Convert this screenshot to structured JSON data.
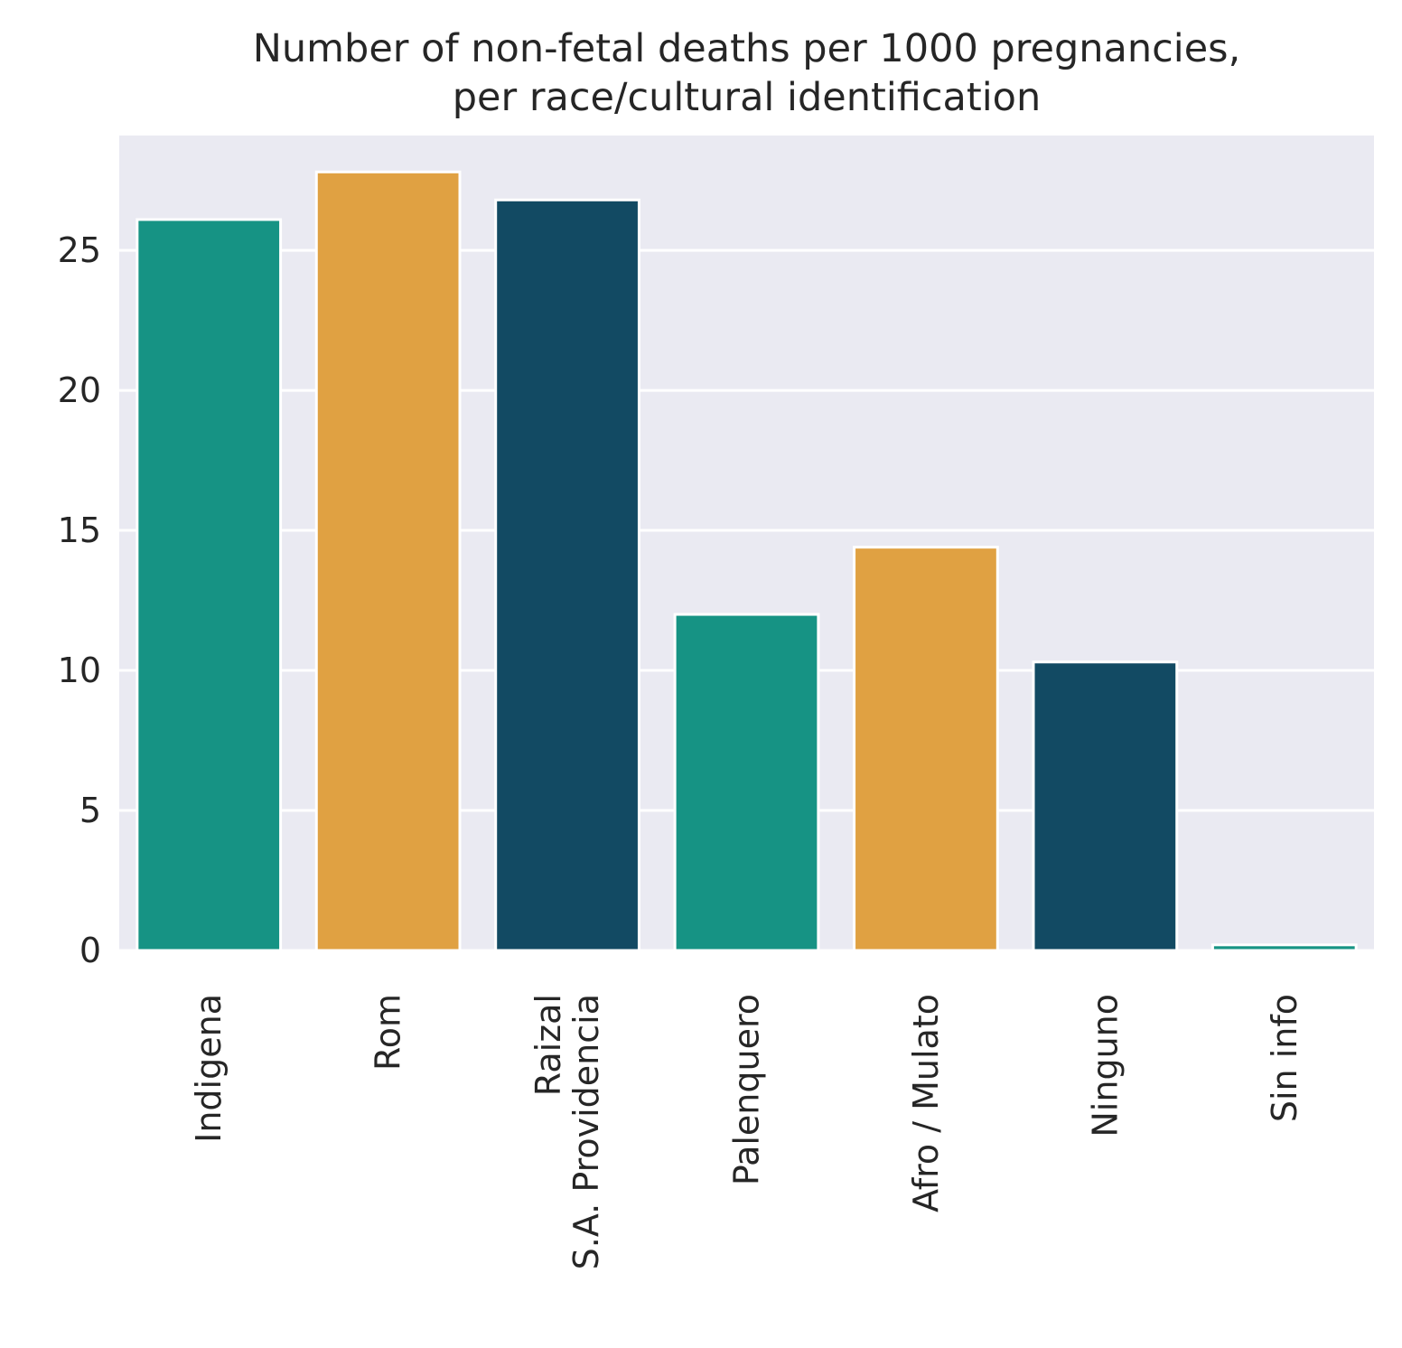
{
  "chart_data": {
    "type": "bar",
    "title": [
      "Number of non-fetal deaths per 1000 pregnancies,",
      "per race/cultural identification"
    ],
    "xlabel": "",
    "ylabel": "",
    "categories": [
      [
        "Indigena"
      ],
      [
        "Rom"
      ],
      [
        "Raizal",
        "S.A. Providencia"
      ],
      [
        "Palenquero"
      ],
      [
        "Afro / Mulato"
      ],
      [
        "Ninguno"
      ],
      [
        "Sin info"
      ]
    ],
    "values": [
      26.1,
      27.8,
      26.8,
      12.0,
      14.4,
      10.3,
      0.2
    ],
    "colors": [
      "#169384",
      "#e0a142",
      "#124a63",
      "#169384",
      "#e0a142",
      "#124a63",
      "#169384"
    ],
    "ylim": [
      0,
      29.1
    ],
    "yticks": [
      0,
      5,
      10,
      15,
      20,
      25
    ],
    "grid": true,
    "background": "#eaeaf2"
  }
}
